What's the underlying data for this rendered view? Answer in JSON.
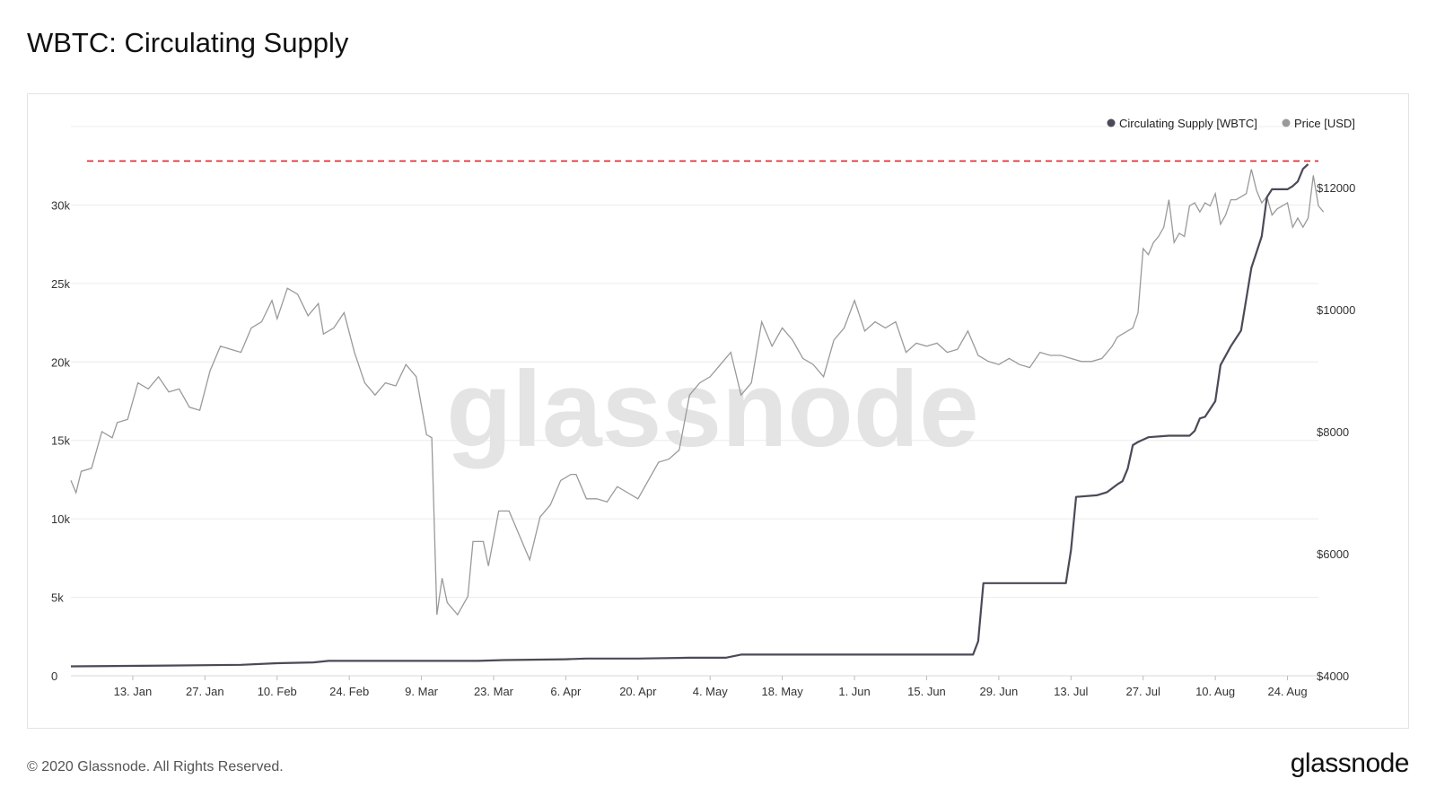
{
  "title": "WBTC: Circulating Supply",
  "footer": "© 2020 Glassnode. All Rights Reserved.",
  "brand": "glassnode",
  "watermark": "glassnode",
  "colors": {
    "supply": "#4a4a58",
    "price": "#9a9a9a",
    "ath_line": "#e0262c",
    "grid": "#ececec"
  },
  "chart_data": {
    "type": "line",
    "legend_position": "top-right",
    "grid": true,
    "x_tick_labels": [
      "13. Jan",
      "27. Jan",
      "10. Feb",
      "24. Feb",
      "9. Mar",
      "23. Mar",
      "6. Apr",
      "20. Apr",
      "4. May",
      "18. May",
      "1. Jun",
      "15. Jun",
      "29. Jun",
      "13. Jul",
      "27. Jul",
      "10. Aug",
      "24. Aug"
    ],
    "x_tick_dates": [
      "2020-01-13",
      "2020-01-27",
      "2020-02-10",
      "2020-02-24",
      "2020-03-09",
      "2020-03-23",
      "2020-04-06",
      "2020-04-20",
      "2020-05-04",
      "2020-05-18",
      "2020-06-01",
      "2020-06-15",
      "2020-06-29",
      "2020-07-13",
      "2020-07-27",
      "2020-08-10",
      "2020-08-24"
    ],
    "x_range": [
      "2020-01-01",
      "2020-08-30"
    ],
    "y_left": {
      "ticks": [
        0,
        5000,
        10000,
        15000,
        20000,
        25000,
        30000
      ],
      "tick_labels": [
        "0",
        "5k",
        "10k",
        "15k",
        "20k",
        "25k",
        "30k"
      ],
      "range": [
        0,
        35000
      ]
    },
    "y_right": {
      "ticks": [
        4000,
        6000,
        8000,
        10000,
        12000
      ],
      "tick_labels": [
        "$4000",
        "$6000",
        "$8000",
        "$10000",
        "$12000"
      ],
      "range": [
        4000,
        13000
      ]
    },
    "reference_line": {
      "axis": "left",
      "value": 32800,
      "style": "dashed"
    },
    "series": [
      {
        "name": "Circulating Supply [WBTC]",
        "axis": "left",
        "points": [
          [
            "2020-01-01",
            600
          ],
          [
            "2020-01-20",
            650
          ],
          [
            "2020-02-03",
            700
          ],
          [
            "2020-02-10",
            800
          ],
          [
            "2020-02-17",
            850
          ],
          [
            "2020-02-20",
            950
          ],
          [
            "2020-03-09",
            950
          ],
          [
            "2020-03-20",
            950
          ],
          [
            "2020-03-25",
            1000
          ],
          [
            "2020-04-06",
            1050
          ],
          [
            "2020-04-10",
            1100
          ],
          [
            "2020-04-20",
            1100
          ],
          [
            "2020-04-30",
            1150
          ],
          [
            "2020-05-07",
            1150
          ],
          [
            "2020-05-10",
            1350
          ],
          [
            "2020-05-31",
            1350
          ],
          [
            "2020-06-24",
            1350
          ],
          [
            "2020-06-25",
            2200
          ],
          [
            "2020-06-26",
            5900
          ],
          [
            "2020-06-30",
            5900
          ],
          [
            "2020-07-12",
            5900
          ],
          [
            "2020-07-13",
            8000
          ],
          [
            "2020-07-14",
            11400
          ],
          [
            "2020-07-18",
            11500
          ],
          [
            "2020-07-20",
            11700
          ],
          [
            "2020-07-22",
            12200
          ],
          [
            "2020-07-23",
            12400
          ],
          [
            "2020-07-24",
            13200
          ],
          [
            "2020-07-25",
            14700
          ],
          [
            "2020-07-26",
            14900
          ],
          [
            "2020-07-28",
            15200
          ],
          [
            "2020-08-01",
            15300
          ],
          [
            "2020-08-05",
            15300
          ],
          [
            "2020-08-06",
            15600
          ],
          [
            "2020-08-07",
            16400
          ],
          [
            "2020-08-08",
            16500
          ],
          [
            "2020-08-10",
            17500
          ],
          [
            "2020-08-11",
            19800
          ],
          [
            "2020-08-13",
            21000
          ],
          [
            "2020-08-15",
            22000
          ],
          [
            "2020-08-17",
            26000
          ],
          [
            "2020-08-18",
            27000
          ],
          [
            "2020-08-19",
            28000
          ],
          [
            "2020-08-20",
            30500
          ],
          [
            "2020-08-21",
            31000
          ],
          [
            "2020-08-24",
            31000
          ],
          [
            "2020-08-25",
            31200
          ],
          [
            "2020-08-26",
            31500
          ],
          [
            "2020-08-27",
            32300
          ],
          [
            "2020-08-28",
            32600
          ]
        ]
      },
      {
        "name": "Price [USD]",
        "axis": "right",
        "points": [
          [
            "2020-01-01",
            7200
          ],
          [
            "2020-01-02",
            7000
          ],
          [
            "2020-01-03",
            7350
          ],
          [
            "2020-01-05",
            7400
          ],
          [
            "2020-01-07",
            8000
          ],
          [
            "2020-01-09",
            7900
          ],
          [
            "2020-01-10",
            8150
          ],
          [
            "2020-01-12",
            8200
          ],
          [
            "2020-01-14",
            8800
          ],
          [
            "2020-01-16",
            8700
          ],
          [
            "2020-01-18",
            8900
          ],
          [
            "2020-01-20",
            8650
          ],
          [
            "2020-01-22",
            8700
          ],
          [
            "2020-01-24",
            8400
          ],
          [
            "2020-01-26",
            8350
          ],
          [
            "2020-01-28",
            9000
          ],
          [
            "2020-01-30",
            9400
          ],
          [
            "2020-02-01",
            9350
          ],
          [
            "2020-02-03",
            9300
          ],
          [
            "2020-02-05",
            9700
          ],
          [
            "2020-02-07",
            9800
          ],
          [
            "2020-02-09",
            10150
          ],
          [
            "2020-02-10",
            9850
          ],
          [
            "2020-02-12",
            10350
          ],
          [
            "2020-02-14",
            10250
          ],
          [
            "2020-02-16",
            9900
          ],
          [
            "2020-02-18",
            10100
          ],
          [
            "2020-02-19",
            9600
          ],
          [
            "2020-02-21",
            9700
          ],
          [
            "2020-02-23",
            9950
          ],
          [
            "2020-02-25",
            9300
          ],
          [
            "2020-02-27",
            8800
          ],
          [
            "2020-02-29",
            8600
          ],
          [
            "2020-03-02",
            8800
          ],
          [
            "2020-03-04",
            8750
          ],
          [
            "2020-03-06",
            9100
          ],
          [
            "2020-03-08",
            8900
          ],
          [
            "2020-03-10",
            7950
          ],
          [
            "2020-03-11",
            7900
          ],
          [
            "2020-03-12",
            5000
          ],
          [
            "2020-03-13",
            5600
          ],
          [
            "2020-03-14",
            5200
          ],
          [
            "2020-03-16",
            5000
          ],
          [
            "2020-03-18",
            5300
          ],
          [
            "2020-03-19",
            6200
          ],
          [
            "2020-03-21",
            6200
          ],
          [
            "2020-03-22",
            5800
          ],
          [
            "2020-03-24",
            6700
          ],
          [
            "2020-03-26",
            6700
          ],
          [
            "2020-03-28",
            6300
          ],
          [
            "2020-03-30",
            5900
          ],
          [
            "2020-04-01",
            6600
          ],
          [
            "2020-04-03",
            6800
          ],
          [
            "2020-04-05",
            7200
          ],
          [
            "2020-04-07",
            7300
          ],
          [
            "2020-04-08",
            7300
          ],
          [
            "2020-04-10",
            6900
          ],
          [
            "2020-04-12",
            6900
          ],
          [
            "2020-04-14",
            6850
          ],
          [
            "2020-04-16",
            7100
          ],
          [
            "2020-04-18",
            7000
          ],
          [
            "2020-04-20",
            6900
          ],
          [
            "2020-04-22",
            7200
          ],
          [
            "2020-04-24",
            7500
          ],
          [
            "2020-04-26",
            7550
          ],
          [
            "2020-04-28",
            7700
          ],
          [
            "2020-04-30",
            8600
          ],
          [
            "2020-05-02",
            8800
          ],
          [
            "2020-05-04",
            8900
          ],
          [
            "2020-05-06",
            9100
          ],
          [
            "2020-05-08",
            9300
          ],
          [
            "2020-05-10",
            8600
          ],
          [
            "2020-05-12",
            8800
          ],
          [
            "2020-05-14",
            9800
          ],
          [
            "2020-05-16",
            9400
          ],
          [
            "2020-05-18",
            9700
          ],
          [
            "2020-05-20",
            9500
          ],
          [
            "2020-05-22",
            9200
          ],
          [
            "2020-05-24",
            9100
          ],
          [
            "2020-05-26",
            8900
          ],
          [
            "2020-05-28",
            9500
          ],
          [
            "2020-05-30",
            9700
          ],
          [
            "2020-06-01",
            10150
          ],
          [
            "2020-06-03",
            9650
          ],
          [
            "2020-06-05",
            9800
          ],
          [
            "2020-06-07",
            9700
          ],
          [
            "2020-06-09",
            9800
          ],
          [
            "2020-06-11",
            9300
          ],
          [
            "2020-06-13",
            9450
          ],
          [
            "2020-06-15",
            9400
          ],
          [
            "2020-06-17",
            9450
          ],
          [
            "2020-06-19",
            9300
          ],
          [
            "2020-06-21",
            9350
          ],
          [
            "2020-06-23",
            9650
          ],
          [
            "2020-06-25",
            9250
          ],
          [
            "2020-06-27",
            9150
          ],
          [
            "2020-06-29",
            9100
          ],
          [
            "2020-07-01",
            9200
          ],
          [
            "2020-07-03",
            9100
          ],
          [
            "2020-07-05",
            9050
          ],
          [
            "2020-07-07",
            9300
          ],
          [
            "2020-07-09",
            9250
          ],
          [
            "2020-07-11",
            9250
          ],
          [
            "2020-07-13",
            9200
          ],
          [
            "2020-07-15",
            9150
          ],
          [
            "2020-07-17",
            9150
          ],
          [
            "2020-07-19",
            9200
          ],
          [
            "2020-07-21",
            9400
          ],
          [
            "2020-07-22",
            9550
          ],
          [
            "2020-07-23",
            9600
          ],
          [
            "2020-07-25",
            9700
          ],
          [
            "2020-07-26",
            9950
          ],
          [
            "2020-07-27",
            11000
          ],
          [
            "2020-07-28",
            10900
          ],
          [
            "2020-07-29",
            11100
          ],
          [
            "2020-07-30",
            11200
          ],
          [
            "2020-07-31",
            11350
          ],
          [
            "2020-08-01",
            11800
          ],
          [
            "2020-08-02",
            11100
          ],
          [
            "2020-08-03",
            11250
          ],
          [
            "2020-08-04",
            11200
          ],
          [
            "2020-08-05",
            11700
          ],
          [
            "2020-08-06",
            11750
          ],
          [
            "2020-08-07",
            11600
          ],
          [
            "2020-08-08",
            11750
          ],
          [
            "2020-08-09",
            11700
          ],
          [
            "2020-08-10",
            11900
          ],
          [
            "2020-08-11",
            11400
          ],
          [
            "2020-08-12",
            11550
          ],
          [
            "2020-08-13",
            11800
          ],
          [
            "2020-08-14",
            11800
          ],
          [
            "2020-08-15",
            11850
          ],
          [
            "2020-08-16",
            11900
          ],
          [
            "2020-08-17",
            12300
          ],
          [
            "2020-08-18",
            11950
          ],
          [
            "2020-08-19",
            11750
          ],
          [
            "2020-08-20",
            11850
          ],
          [
            "2020-08-21",
            11550
          ],
          [
            "2020-08-22",
            11650
          ],
          [
            "2020-08-23",
            11700
          ],
          [
            "2020-08-24",
            11750
          ],
          [
            "2020-08-25",
            11350
          ],
          [
            "2020-08-26",
            11500
          ],
          [
            "2020-08-27",
            11350
          ],
          [
            "2020-08-28",
            11500
          ],
          [
            "2020-08-29",
            12200
          ],
          [
            "2020-08-30",
            11700
          ],
          [
            "2020-08-31",
            11600
          ]
        ]
      }
    ]
  }
}
